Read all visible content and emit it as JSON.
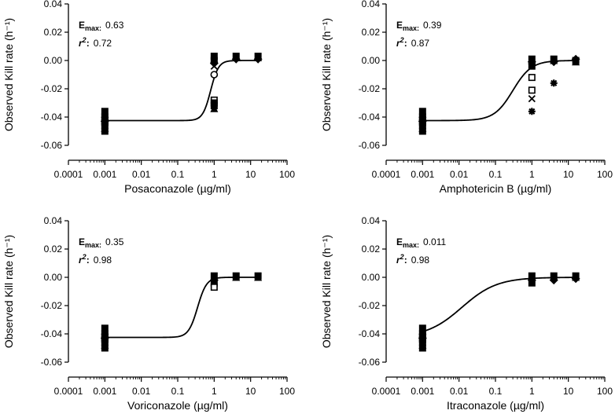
{
  "chart_data": [
    {
      "type": "scatter",
      "title": "",
      "xlabel": "Posaconazole (µg/ml)",
      "ylabel": "Observed Kill rate (h⁻¹)",
      "xscale": "log",
      "xlim": [
        0.0001,
        100
      ],
      "ylim": [
        -0.06,
        0.04
      ],
      "x_ticks": [
        "0.0001",
        "0.001",
        "0.01",
        "0.1",
        "1",
        "10",
        "100"
      ],
      "y_ticks": [
        "-0.06",
        "-0.04",
        "-0.02",
        "0.00",
        "0.02",
        "0.04"
      ],
      "emax_label": "E",
      "emax_sub": "max:",
      "emax_value": "0.63",
      "r2_label": "r",
      "r2_sup": "2",
      "r2_colon": ":",
      "r2_value": "0.72",
      "curve": {
        "bottom": -0.0425,
        "top": 0.0,
        "ec50": 0.8,
        "hill": 4.0
      },
      "points": [
        {
          "x": 0.001,
          "y": -0.036,
          "m": "fill"
        },
        {
          "x": 0.001,
          "y": -0.038,
          "m": "tri"
        },
        {
          "x": 0.001,
          "y": -0.04,
          "m": "fill"
        },
        {
          "x": 0.001,
          "y": -0.041,
          "m": "x"
        },
        {
          "x": 0.001,
          "y": -0.042,
          "m": "fill"
        },
        {
          "x": 0.001,
          "y": -0.043,
          "m": "dia"
        },
        {
          "x": 0.001,
          "y": -0.044,
          "m": "fill"
        },
        {
          "x": 0.001,
          "y": -0.045,
          "m": "star"
        },
        {
          "x": 0.001,
          "y": -0.046,
          "m": "fill"
        },
        {
          "x": 0.001,
          "y": -0.048,
          "m": "tri"
        },
        {
          "x": 0.001,
          "y": -0.05,
          "m": "fill"
        },
        {
          "x": 1,
          "y": 0.003,
          "m": "fill"
        },
        {
          "x": 1,
          "y": 0.001,
          "m": "tri"
        },
        {
          "x": 1,
          "y": 0.0,
          "m": "fill"
        },
        {
          "x": 1,
          "y": -0.002,
          "m": "dia"
        },
        {
          "x": 1,
          "y": -0.004,
          "m": "x"
        },
        {
          "x": 1,
          "y": -0.01,
          "m": "circle"
        },
        {
          "x": 1,
          "y": -0.028,
          "m": "open"
        },
        {
          "x": 1,
          "y": -0.03,
          "m": "fill"
        },
        {
          "x": 1,
          "y": -0.032,
          "m": "fill"
        },
        {
          "x": 1,
          "y": -0.034,
          "m": "tri"
        },
        {
          "x": 4,
          "y": 0.003,
          "m": "fill"
        },
        {
          "x": 4,
          "y": 0.002,
          "m": "tri"
        },
        {
          "x": 4,
          "y": 0.001,
          "m": "dia"
        },
        {
          "x": 16,
          "y": 0.003,
          "m": "fill"
        },
        {
          "x": 16,
          "y": 0.002,
          "m": "tri"
        },
        {
          "x": 16,
          "y": 0.001,
          "m": "dia"
        }
      ]
    },
    {
      "type": "scatter",
      "title": "",
      "xlabel": "Amphotericin B (µg/ml)",
      "ylabel": "Observed Kill rate (h⁻¹)",
      "xscale": "log",
      "xlim": [
        0.0001,
        100
      ],
      "ylim": [
        -0.06,
        0.04
      ],
      "x_ticks": [
        "0.0001",
        "0.001",
        "0.01",
        "0.1",
        "1",
        "10",
        "100"
      ],
      "y_ticks": [
        "-0.06",
        "-0.04",
        "-0.02",
        "0.00",
        "0.02",
        "0.04"
      ],
      "emax_label": "E",
      "emax_sub": "max:",
      "emax_value": "0.39",
      "r2_label": "r",
      "r2_sup": "2",
      "r2_colon": ":",
      "r2_value": "0.87",
      "curve": {
        "bottom": -0.0425,
        "top": 0.0,
        "ec50": 0.3,
        "hill": 1.7
      },
      "points": [
        {
          "x": 0.001,
          "y": -0.036,
          "m": "fill"
        },
        {
          "x": 0.001,
          "y": -0.038,
          "m": "tri"
        },
        {
          "x": 0.001,
          "y": -0.04,
          "m": "fill"
        },
        {
          "x": 0.001,
          "y": -0.041,
          "m": "x"
        },
        {
          "x": 0.001,
          "y": -0.042,
          "m": "fill"
        },
        {
          "x": 0.001,
          "y": -0.043,
          "m": "dia"
        },
        {
          "x": 0.001,
          "y": -0.044,
          "m": "fill"
        },
        {
          "x": 0.001,
          "y": -0.045,
          "m": "star"
        },
        {
          "x": 0.001,
          "y": -0.046,
          "m": "fill"
        },
        {
          "x": 0.001,
          "y": -0.048,
          "m": "tri"
        },
        {
          "x": 0.001,
          "y": -0.05,
          "m": "fill"
        },
        {
          "x": 1,
          "y": 0.001,
          "m": "fill"
        },
        {
          "x": 1,
          "y": 0.0,
          "m": "tri"
        },
        {
          "x": 1,
          "y": -0.001,
          "m": "dia"
        },
        {
          "x": 1,
          "y": -0.004,
          "m": "fill"
        },
        {
          "x": 1,
          "y": -0.012,
          "m": "open"
        },
        {
          "x": 1,
          "y": -0.021,
          "m": "open"
        },
        {
          "x": 1,
          "y": -0.027,
          "m": "x"
        },
        {
          "x": 1,
          "y": -0.036,
          "m": "star"
        },
        {
          "x": 4,
          "y": 0.001,
          "m": "fill"
        },
        {
          "x": 4,
          "y": 0.0,
          "m": "tri"
        },
        {
          "x": 4,
          "y": -0.001,
          "m": "dia"
        },
        {
          "x": 4,
          "y": -0.016,
          "m": "star"
        },
        {
          "x": 16,
          "y": 0.0,
          "m": "fill"
        },
        {
          "x": 16,
          "y": -0.001,
          "m": "tri"
        },
        {
          "x": 16,
          "y": 0.001,
          "m": "dia"
        }
      ]
    },
    {
      "type": "scatter",
      "title": "",
      "xlabel": "Voriconazole (µg/ml)",
      "ylabel": "Observed Kill rate (h⁻¹)",
      "xscale": "log",
      "xlim": [
        0.0001,
        100
      ],
      "ylim": [
        -0.06,
        0.04
      ],
      "x_ticks": [
        "0.0001",
        "0.001",
        "0.01",
        "0.1",
        "1",
        "10",
        "100"
      ],
      "y_ticks": [
        "-0.06",
        "-0.04",
        "-0.02",
        "0.00",
        "0.02",
        "0.04"
      ],
      "emax_label": "E",
      "emax_sub": "max:",
      "emax_value": "0.35",
      "r2_label": "r",
      "r2_sup": "2",
      "r2_colon": ":",
      "r2_value": "0.98",
      "curve": {
        "bottom": -0.0425,
        "top": 0.0,
        "ec50": 0.35,
        "hill": 3.5
      },
      "points": [
        {
          "x": 0.001,
          "y": -0.036,
          "m": "fill"
        },
        {
          "x": 0.001,
          "y": -0.038,
          "m": "tri"
        },
        {
          "x": 0.001,
          "y": -0.04,
          "m": "fill"
        },
        {
          "x": 0.001,
          "y": -0.041,
          "m": "x"
        },
        {
          "x": 0.001,
          "y": -0.042,
          "m": "fill"
        },
        {
          "x": 0.001,
          "y": -0.043,
          "m": "dia"
        },
        {
          "x": 0.001,
          "y": -0.044,
          "m": "fill"
        },
        {
          "x": 0.001,
          "y": -0.045,
          "m": "star"
        },
        {
          "x": 0.001,
          "y": -0.046,
          "m": "fill"
        },
        {
          "x": 0.001,
          "y": -0.048,
          "m": "tri"
        },
        {
          "x": 0.001,
          "y": -0.05,
          "m": "fill"
        },
        {
          "x": 1,
          "y": 0.001,
          "m": "fill"
        },
        {
          "x": 1,
          "y": 0.0,
          "m": "tri"
        },
        {
          "x": 1,
          "y": -0.002,
          "m": "dia"
        },
        {
          "x": 1,
          "y": -0.004,
          "m": "fill"
        },
        {
          "x": 1,
          "y": -0.007,
          "m": "open"
        },
        {
          "x": 4,
          "y": 0.001,
          "m": "fill"
        },
        {
          "x": 4,
          "y": 0.0,
          "m": "tri"
        },
        {
          "x": 16,
          "y": 0.001,
          "m": "fill"
        },
        {
          "x": 16,
          "y": 0.0,
          "m": "tri"
        }
      ]
    },
    {
      "type": "scatter",
      "title": "",
      "xlabel": "Itraconazole (µg/ml)",
      "ylabel": "Observed Kill rate (h⁻¹)",
      "xscale": "log",
      "xlim": [
        0.0001,
        100
      ],
      "ylim": [
        -0.06,
        0.04
      ],
      "x_ticks": [
        "0.0001",
        "0.001",
        "0.01",
        "0.1",
        "1",
        "10",
        "100"
      ],
      "y_ticks": [
        "-0.06",
        "-0.04",
        "-0.02",
        "0.00",
        "0.02",
        "0.04"
      ],
      "emax_label": "E",
      "emax_sub": "max:",
      "emax_value": "0.011",
      "r2_label": "r",
      "r2_sup": "2",
      "r2_colon": ":",
      "r2_value": "0.98",
      "curve": {
        "bottom": -0.0425,
        "top": 0.0,
        "ec50": 0.012,
        "hill": 0.9
      },
      "points": [
        {
          "x": 0.001,
          "y": -0.036,
          "m": "fill"
        },
        {
          "x": 0.001,
          "y": -0.038,
          "m": "tri"
        },
        {
          "x": 0.001,
          "y": -0.04,
          "m": "fill"
        },
        {
          "x": 0.001,
          "y": -0.041,
          "m": "x"
        },
        {
          "x": 0.001,
          "y": -0.042,
          "m": "fill"
        },
        {
          "x": 0.001,
          "y": -0.043,
          "m": "dia"
        },
        {
          "x": 0.001,
          "y": -0.044,
          "m": "fill"
        },
        {
          "x": 0.001,
          "y": -0.045,
          "m": "star"
        },
        {
          "x": 0.001,
          "y": -0.046,
          "m": "fill"
        },
        {
          "x": 0.001,
          "y": -0.048,
          "m": "tri"
        },
        {
          "x": 0.001,
          "y": -0.05,
          "m": "fill"
        },
        {
          "x": 1,
          "y": 0.001,
          "m": "fill"
        },
        {
          "x": 1,
          "y": 0.0,
          "m": "tri"
        },
        {
          "x": 1,
          "y": -0.002,
          "m": "dia"
        },
        {
          "x": 1,
          "y": -0.004,
          "m": "fill"
        },
        {
          "x": 4,
          "y": 0.001,
          "m": "fill"
        },
        {
          "x": 4,
          "y": 0.0,
          "m": "tri"
        },
        {
          "x": 4,
          "y": -0.002,
          "m": "dia"
        },
        {
          "x": 16,
          "y": 0.001,
          "m": "fill"
        },
        {
          "x": 16,
          "y": 0.0,
          "m": "tri"
        },
        {
          "x": 16,
          "y": -0.001,
          "m": "dia"
        }
      ]
    }
  ]
}
